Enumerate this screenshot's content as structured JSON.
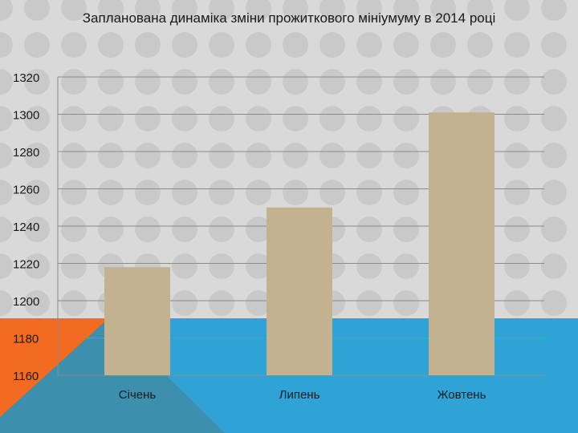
{
  "colors": {
    "background": "#d9d9d9",
    "dots": "#c9c9c9",
    "bar": "#c2b290",
    "grid": "#8c8c8c",
    "text": "#1a1a1a",
    "band_blue": "#2fa3d6",
    "band_orange": "#f36a21",
    "band_dark": "#3d8fae"
  },
  "chart_data": {
    "type": "bar",
    "title": "Запланована динаміка зміни прожиткового мініумуму в 2014 році",
    "categories": [
      "Січень",
      "Липень",
      "Жовтень"
    ],
    "values": [
      1218,
      1250,
      1301
    ],
    "ylim": [
      1160,
      1320
    ],
    "yticks": [
      "1160",
      "1180",
      "1200",
      "1220",
      "1240",
      "1260",
      "1280",
      "1300",
      "1320"
    ],
    "grid": true,
    "legend": "none",
    "xlabel": "",
    "ylabel": ""
  }
}
